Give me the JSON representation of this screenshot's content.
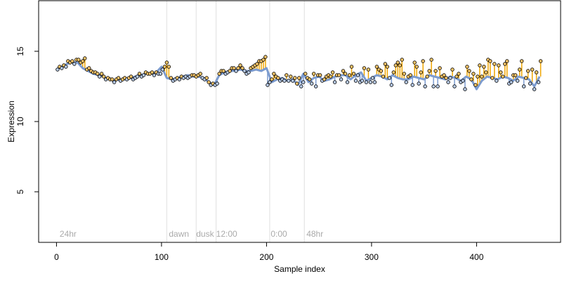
{
  "chart_data": {
    "type": "scatter",
    "title": "",
    "xlabel": "Sample index",
    "ylabel": "Expression",
    "xlim": [
      -17,
      480
    ],
    "ylim": [
      1.4,
      18.6
    ],
    "x_ticks": [
      0,
      100,
      200,
      300,
      400
    ],
    "y_ticks": [
      5,
      10,
      15
    ],
    "grid": false,
    "legend": "none",
    "vlines": [
      105,
      133,
      152,
      203,
      236
    ],
    "annotations": [
      {
        "x": 3,
        "text": "24hr"
      },
      {
        "x": 107,
        "text": "dawn"
      },
      {
        "x": 133,
        "text": "dusk"
      },
      {
        "x": 152,
        "text": "12:00"
      },
      {
        "x": 204,
        "text": "0:00"
      },
      {
        "x": 238,
        "text": "48hr"
      }
    ],
    "annotation_y": 2,
    "series": [
      {
        "type": "line",
        "x": [
          0,
          5,
          10,
          15,
          20,
          25,
          30,
          35,
          40,
          45,
          50,
          55,
          60,
          65,
          70,
          75,
          80,
          85,
          90,
          95,
          100,
          105,
          110,
          115,
          120,
          125,
          130,
          135,
          140,
          145,
          150,
          155,
          160,
          165,
          170,
          175,
          180,
          185,
          190,
          195,
          200,
          205,
          210,
          215,
          220,
          225,
          230,
          235,
          240,
          245,
          250,
          255,
          260,
          265,
          270,
          275,
          280,
          285,
          290,
          295,
          300,
          305,
          310,
          315,
          320,
          325,
          330,
          335,
          340,
          345,
          350,
          355,
          360,
          365,
          370,
          375,
          380,
          385,
          390,
          395,
          400,
          405,
          410,
          415,
          420,
          425,
          430,
          435,
          440,
          445,
          450,
          455,
          460
        ],
        "y": [
          13.7,
          13.9,
          14.1,
          14.2,
          14.2,
          13.8,
          13.6,
          13.4,
          13.3,
          13.2,
          13.0,
          12.9,
          13.0,
          13.0,
          13.1,
          13.2,
          13.3,
          13.4,
          13.4,
          13.5,
          13.9,
          13.1,
          13.0,
          13.1,
          13.2,
          13.3,
          13.2,
          13.2,
          13.1,
          12.8,
          12.6,
          13.3,
          13.5,
          13.6,
          13.6,
          13.7,
          13.6,
          13.6,
          13.7,
          13.6,
          13.8,
          12.8,
          13.0,
          13.1,
          12.9,
          13.0,
          12.6,
          13.4,
          12.8,
          13.1,
          13.2,
          12.9,
          13.0,
          13.2,
          13.3,
          13.3,
          13.0,
          13.3,
          13.5,
          12.9,
          13.1,
          13.3,
          13.2,
          13.0,
          13.3,
          13.1,
          13.0,
          13.0,
          13.2,
          13.1,
          13.0,
          13.3,
          13.2,
          13.1,
          13.0,
          13.2,
          13.1,
          12.9,
          13.2,
          13.0,
          12.3,
          12.9,
          13.2,
          13.1,
          13.0,
          13.2,
          13.1,
          12.9,
          13.2,
          13.1,
          13.0,
          12.5,
          13.2
        ],
        "color": "#7d9ccf"
      },
      {
        "type": "points",
        "x": [
          1,
          3,
          5,
          7,
          9,
          11,
          13,
          15,
          17,
          19,
          21,
          23,
          25,
          27,
          29,
          31,
          33,
          35,
          37,
          39,
          41,
          43,
          45,
          47,
          49,
          51,
          53,
          55,
          57,
          59,
          61,
          63,
          65,
          67,
          69,
          71,
          73,
          75,
          77,
          79,
          81,
          83,
          85,
          87,
          89,
          91,
          93,
          95,
          97,
          99,
          101,
          103,
          105,
          107,
          109,
          111,
          113,
          115,
          117,
          119,
          121,
          123,
          125,
          127,
          129,
          131,
          133,
          135,
          137,
          139,
          141,
          143,
          145,
          147,
          149,
          151,
          153,
          155,
          157,
          159,
          161,
          163,
          165,
          167,
          169,
          171,
          173,
          175,
          177,
          179,
          181,
          183,
          185,
          187,
          189,
          191,
          193,
          195,
          197,
          199,
          201,
          203,
          205,
          207,
          209,
          211,
          213,
          215,
          217,
          219,
          221,
          223,
          225,
          227,
          229,
          231,
          233,
          235,
          237,
          239,
          241,
          243,
          245,
          247,
          249,
          251,
          253,
          255,
          257,
          259,
          261,
          263,
          265,
          267,
          269,
          271,
          273,
          275,
          277,
          279,
          281,
          283,
          285,
          287,
          289,
          291,
          293,
          295,
          297,
          299,
          301,
          303,
          305,
          307,
          309,
          311,
          313,
          315,
          317,
          319,
          321,
          323,
          325,
          327,
          329,
          331,
          333,
          335,
          337,
          339,
          341,
          343,
          345,
          347,
          349,
          351,
          353,
          355,
          357,
          359,
          361,
          363,
          365,
          367,
          369,
          371,
          373,
          375,
          377,
          379,
          381,
          383,
          385,
          387,
          389,
          391,
          393,
          395,
          397,
          399,
          401,
          403,
          405,
          407,
          409,
          411,
          413,
          415,
          417,
          419,
          421,
          423,
          425,
          427,
          429,
          431,
          433,
          435,
          437,
          439,
          441,
          443,
          445,
          447,
          449,
          451,
          453,
          455,
          457,
          459,
          461
        ],
        "y": [
          13.7,
          13.9,
          13.8,
          14.0,
          13.9,
          14.3,
          14.2,
          14.3,
          14.1,
          14.4,
          14.4,
          14.2,
          14.3,
          14.5,
          13.7,
          13.8,
          13.6,
          13.5,
          13.5,
          13.4,
          13.2,
          13.4,
          13.2,
          13.0,
          13.1,
          13.0,
          13.0,
          12.8,
          13.0,
          13.1,
          12.9,
          13.0,
          13.1,
          13.0,
          13.1,
          13.2,
          13.0,
          13.1,
          13.2,
          13.4,
          13.2,
          13.3,
          13.5,
          13.4,
          13.4,
          13.5,
          13.3,
          13.5,
          13.4,
          13.4,
          13.7,
          13.9,
          14.2,
          13.9,
          13.1,
          12.9,
          13.0,
          13.1,
          13.0,
          13.2,
          13.1,
          13.2,
          13.1,
          13.2,
          13.3,
          13.3,
          13.2,
          13.3,
          13.4,
          13.1,
          13.0,
          13.1,
          12.8,
          12.6,
          12.7,
          12.6,
          12.7,
          13.4,
          13.6,
          13.6,
          13.4,
          13.5,
          13.6,
          13.8,
          13.8,
          13.6,
          13.8,
          14.0,
          13.8,
          13.6,
          13.4,
          13.5,
          13.8,
          13.9,
          14.0,
          14.1,
          14.3,
          14.3,
          14.4,
          14.6,
          12.6,
          12.8,
          13.0,
          13.4,
          13.2,
          13.1,
          12.9,
          13.0,
          12.9,
          13.3,
          12.9,
          13.2,
          12.9,
          13.1,
          12.7,
          13.1,
          12.5,
          12.8,
          13.4,
          13.1,
          13.0,
          12.7,
          13.4,
          12.5,
          13.3,
          13.3,
          12.9,
          13.0,
          13.2,
          13.3,
          13.2,
          13.5,
          12.8,
          13.3,
          13.3,
          13.0,
          13.6,
          13.4,
          12.8,
          13.3,
          13.9,
          13.4,
          12.9,
          13.3,
          12.8,
          12.9,
          13.8,
          12.8,
          13.7,
          12.8,
          13.1,
          12.8,
          13.9,
          13.7,
          13.6,
          13.2,
          14.1,
          13.9,
          13.1,
          12.6,
          13.5,
          14.0,
          14.2,
          14.0,
          14.4,
          13.4,
          12.8,
          13.2,
          13.3,
          12.6,
          14.2,
          13.9,
          12.7,
          13.5,
          14.3,
          12.5,
          13.2,
          13.6,
          14.4,
          12.5,
          13.6,
          12.5,
          13.8,
          13.2,
          13.3,
          13.1,
          12.8,
          13.1,
          13.7,
          12.5,
          13.2,
          13.4,
          12.8,
          12.9,
          12.3,
          13.9,
          13.6,
          13.0,
          13.4,
          12.6,
          13.2,
          14.0,
          13.2,
          13.9,
          13.5,
          14.4,
          14.3,
          13.1,
          14.1,
          12.9,
          14.0,
          13.5,
          13.2,
          14.1,
          14.3,
          12.7,
          12.8,
          13.3,
          13.3,
          12.9,
          13.7,
          14.3,
          12.5,
          13.1,
          13.6,
          12.7,
          13.7,
          12.3,
          13.5,
          12.8,
          14.3
        ],
        "color": "#000000"
      }
    ]
  }
}
